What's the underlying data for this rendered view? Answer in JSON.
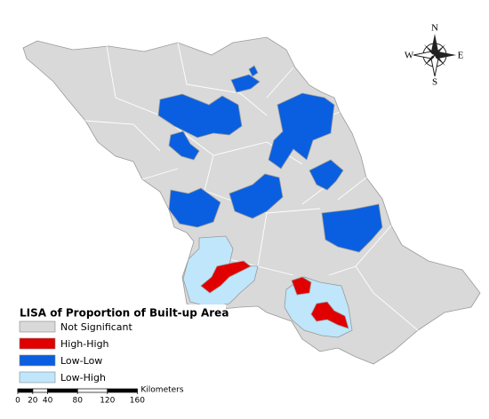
{
  "map": {
    "compass": {
      "north": "N",
      "south": "S",
      "east": "E",
      "west": "W"
    },
    "legend": {
      "title": "LISA of Proportion of Built-up Area",
      "items": [
        {
          "label": "Not Significant",
          "color": "#d9d9d9"
        },
        {
          "label": "High-High",
          "color": "#e00000"
        },
        {
          "label": "Low-Low",
          "color": "#0a5fe0"
        },
        {
          "label": "Low-High",
          "color": "#bfe6fb"
        }
      ]
    },
    "scale_bar": {
      "ticks": [
        0,
        20,
        40,
        80,
        120,
        160
      ],
      "unit": "Kilometers"
    }
  }
}
